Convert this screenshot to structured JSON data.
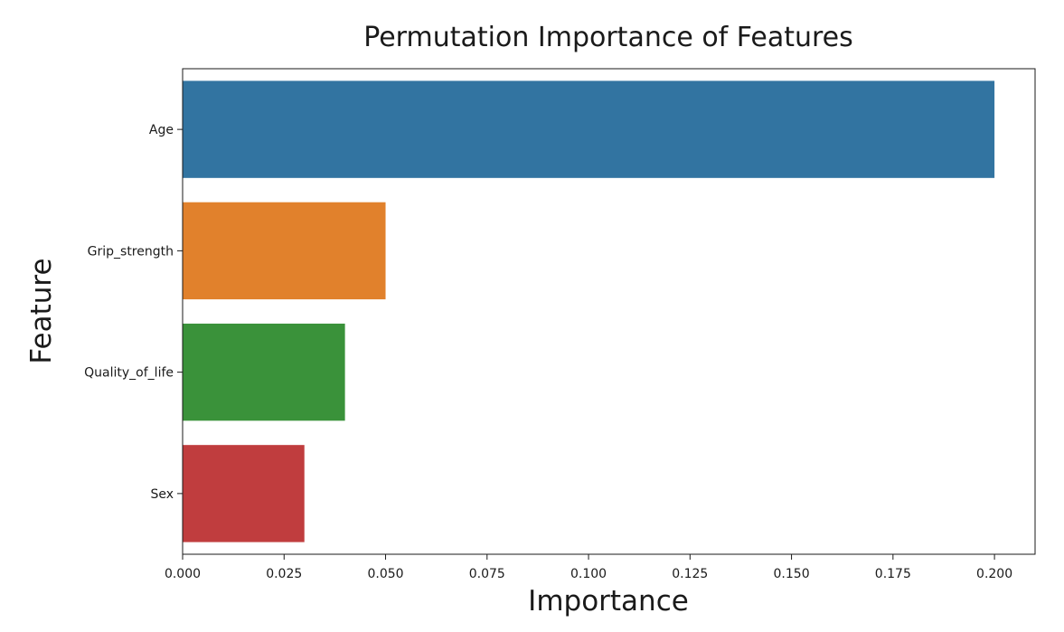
{
  "chart_data": {
    "type": "bar",
    "orientation": "horizontal",
    "title": "Permutation Importance of Features",
    "xlabel": "Importance",
    "ylabel": "Feature",
    "categories": [
      "Age",
      "Grip_strength",
      "Quality_of_life",
      "Sex"
    ],
    "values": [
      0.2,
      0.05,
      0.04,
      0.03
    ],
    "colors": [
      "#3274a1",
      "#e1812c",
      "#3a923a",
      "#c03d3e"
    ],
    "xlim": [
      0,
      0.21
    ],
    "xticks": [
      0.0,
      0.025,
      0.05,
      0.075,
      0.1,
      0.125,
      0.15,
      0.175,
      0.2
    ],
    "xtick_labels": [
      "0.000",
      "0.025",
      "0.050",
      "0.075",
      "0.100",
      "0.125",
      "0.150",
      "0.175",
      "0.200"
    ],
    "grid": false,
    "legend": "none"
  }
}
